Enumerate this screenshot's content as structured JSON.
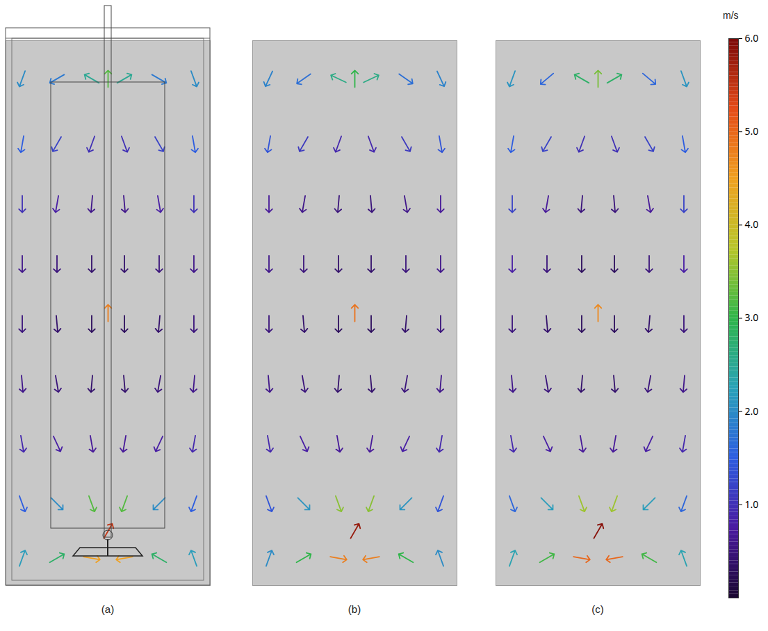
{
  "chart_data": {
    "type": "vector",
    "xlim": [
      0,
      1
    ],
    "ylim": [
      0,
      1
    ],
    "tick_labels": false,
    "colorbar": {
      "label": "m/s",
      "lim": [
        0,
        6
      ],
      "ticks": [
        1,
        2,
        3,
        4,
        5,
        6
      ]
    },
    "panels": [
      {
        "title": "(a)",
        "x": [
          0.08,
          0.25,
          0.42,
          0.58,
          0.75,
          0.92,
          0.08,
          0.25,
          0.42,
          0.58,
          0.75,
          0.92,
          0.08,
          0.25,
          0.42,
          0.58,
          0.75,
          0.92,
          0.08,
          0.25,
          0.42,
          0.58,
          0.75,
          0.92,
          0.08,
          0.25,
          0.42,
          0.58,
          0.75,
          0.92,
          0.08,
          0.25,
          0.42,
          0.58,
          0.75,
          0.92,
          0.08,
          0.25,
          0.42,
          0.58,
          0.75,
          0.92,
          0.08,
          0.25,
          0.42,
          0.58,
          0.75,
          0.92,
          0.08,
          0.25,
          0.42,
          0.58,
          0.75,
          0.92,
          0.5,
          0.5,
          0.5
        ],
        "y": [
          0.93,
          0.93,
          0.93,
          0.93,
          0.93,
          0.93,
          0.81,
          0.81,
          0.81,
          0.81,
          0.81,
          0.81,
          0.7,
          0.7,
          0.7,
          0.7,
          0.7,
          0.7,
          0.59,
          0.59,
          0.59,
          0.59,
          0.59,
          0.59,
          0.48,
          0.48,
          0.48,
          0.48,
          0.48,
          0.48,
          0.37,
          0.37,
          0.37,
          0.37,
          0.37,
          0.37,
          0.26,
          0.26,
          0.26,
          0.26,
          0.26,
          0.26,
          0.15,
          0.15,
          0.15,
          0.15,
          0.15,
          0.15,
          0.05,
          0.05,
          0.05,
          0.05,
          0.05,
          0.05,
          0.93,
          0.5,
          0.1
        ],
        "speed": [
          2.0,
          1.8,
          2.5,
          2.5,
          1.8,
          2.0,
          1.5,
          1.2,
          1.0,
          1.0,
          1.2,
          1.5,
          1.0,
          0.8,
          0.6,
          0.6,
          0.8,
          1.0,
          0.6,
          0.5,
          0.4,
          0.4,
          0.5,
          0.6,
          0.5,
          0.4,
          0.3,
          0.3,
          0.4,
          0.5,
          0.6,
          0.5,
          0.4,
          0.4,
          0.5,
          0.6,
          0.9,
          0.8,
          0.7,
          0.7,
          0.8,
          0.9,
          1.5,
          2.0,
          3.2,
          3.2,
          2.0,
          1.5,
          2.2,
          2.8,
          4.5,
          4.5,
          2.8,
          2.2,
          3.2,
          4.8,
          5.5
        ],
        "angle": [
          200,
          240,
          300,
          60,
          120,
          160,
          190,
          210,
          200,
          160,
          150,
          170,
          180,
          190,
          185,
          175,
          170,
          180,
          180,
          180,
          180,
          180,
          180,
          180,
          180,
          175,
          180,
          180,
          185,
          180,
          175,
          170,
          185,
          175,
          190,
          185,
          170,
          155,
          170,
          190,
          205,
          190,
          160,
          135,
          160,
          200,
          225,
          200,
          20,
          60,
          100,
          260,
          300,
          340,
          0,
          0,
          30
        ]
      },
      {
        "title": "(b)",
        "x": [
          0.08,
          0.25,
          0.42,
          0.58,
          0.75,
          0.92,
          0.08,
          0.25,
          0.42,
          0.58,
          0.75,
          0.92,
          0.08,
          0.25,
          0.42,
          0.58,
          0.75,
          0.92,
          0.08,
          0.25,
          0.42,
          0.58,
          0.75,
          0.92,
          0.08,
          0.25,
          0.42,
          0.58,
          0.75,
          0.92,
          0.08,
          0.25,
          0.42,
          0.58,
          0.75,
          0.92,
          0.08,
          0.25,
          0.42,
          0.58,
          0.75,
          0.92,
          0.08,
          0.25,
          0.42,
          0.58,
          0.75,
          0.92,
          0.08,
          0.25,
          0.42,
          0.58,
          0.75,
          0.92,
          0.5,
          0.5,
          0.5
        ],
        "y": [
          0.93,
          0.93,
          0.93,
          0.93,
          0.93,
          0.93,
          0.81,
          0.81,
          0.81,
          0.81,
          0.81,
          0.81,
          0.7,
          0.7,
          0.7,
          0.7,
          0.7,
          0.7,
          0.59,
          0.59,
          0.59,
          0.59,
          0.59,
          0.59,
          0.48,
          0.48,
          0.48,
          0.48,
          0.48,
          0.48,
          0.37,
          0.37,
          0.37,
          0.37,
          0.37,
          0.37,
          0.26,
          0.26,
          0.26,
          0.26,
          0.26,
          0.26,
          0.15,
          0.15,
          0.15,
          0.15,
          0.15,
          0.15,
          0.05,
          0.05,
          0.05,
          0.05,
          0.05,
          0.05,
          0.93,
          0.5,
          0.1
        ],
        "speed": [
          1.9,
          1.7,
          2.6,
          2.6,
          1.7,
          1.9,
          1.4,
          1.1,
          0.9,
          0.9,
          1.1,
          1.4,
          0.7,
          0.6,
          0.5,
          0.5,
          0.6,
          0.7,
          0.6,
          0.5,
          0.4,
          0.4,
          0.5,
          0.6,
          0.5,
          0.4,
          0.3,
          0.3,
          0.4,
          0.5,
          0.6,
          0.5,
          0.4,
          0.4,
          0.5,
          0.6,
          0.9,
          0.8,
          0.7,
          0.7,
          0.8,
          0.9,
          1.4,
          2.1,
          3.5,
          3.5,
          2.1,
          1.4,
          2.0,
          3.0,
          4.8,
          4.8,
          3.0,
          2.0,
          3.0,
          4.9,
          5.8
        ],
        "angle": [
          205,
          235,
          295,
          65,
          125,
          155,
          190,
          210,
          200,
          160,
          150,
          170,
          180,
          190,
          185,
          175,
          170,
          180,
          180,
          180,
          180,
          180,
          180,
          180,
          180,
          175,
          180,
          180,
          185,
          180,
          175,
          170,
          185,
          175,
          190,
          185,
          170,
          155,
          170,
          190,
          205,
          190,
          160,
          135,
          160,
          200,
          225,
          200,
          20,
          60,
          100,
          260,
          300,
          340,
          0,
          0,
          30
        ]
      },
      {
        "title": "(c)",
        "x": [
          0.08,
          0.25,
          0.42,
          0.58,
          0.75,
          0.92,
          0.08,
          0.25,
          0.42,
          0.58,
          0.75,
          0.92,
          0.08,
          0.25,
          0.42,
          0.58,
          0.75,
          0.92,
          0.08,
          0.25,
          0.42,
          0.58,
          0.75,
          0.92,
          0.08,
          0.25,
          0.42,
          0.58,
          0.75,
          0.92,
          0.08,
          0.25,
          0.42,
          0.58,
          0.75,
          0.92,
          0.08,
          0.25,
          0.42,
          0.58,
          0.75,
          0.92,
          0.08,
          0.25,
          0.42,
          0.58,
          0.75,
          0.92,
          0.08,
          0.25,
          0.42,
          0.58,
          0.75,
          0.92,
          0.5,
          0.5,
          0.5
        ],
        "y": [
          0.93,
          0.93,
          0.93,
          0.93,
          0.93,
          0.93,
          0.81,
          0.81,
          0.81,
          0.81,
          0.81,
          0.81,
          0.7,
          0.7,
          0.7,
          0.7,
          0.7,
          0.7,
          0.59,
          0.59,
          0.59,
          0.59,
          0.59,
          0.59,
          0.48,
          0.48,
          0.48,
          0.48,
          0.48,
          0.48,
          0.37,
          0.37,
          0.37,
          0.37,
          0.37,
          0.37,
          0.26,
          0.26,
          0.26,
          0.26,
          0.26,
          0.26,
          0.15,
          0.15,
          0.15,
          0.15,
          0.15,
          0.15,
          0.05,
          0.05,
          0.05,
          0.05,
          0.05,
          0.05,
          0.93,
          0.5,
          0.1
        ],
        "speed": [
          2.1,
          1.6,
          2.8,
          2.8,
          1.6,
          2.1,
          1.5,
          1.2,
          1.0,
          1.0,
          1.2,
          1.5,
          1.2,
          0.7,
          0.5,
          0.5,
          0.7,
          1.2,
          0.8,
          0.5,
          0.3,
          0.3,
          0.5,
          0.8,
          0.5,
          0.4,
          0.3,
          0.3,
          0.4,
          0.5,
          0.6,
          0.5,
          0.4,
          0.4,
          0.5,
          0.6,
          0.9,
          0.8,
          0.7,
          0.7,
          0.8,
          0.9,
          1.6,
          2.2,
          3.6,
          3.6,
          2.2,
          1.6,
          2.3,
          3.1,
          5.0,
          5.0,
          3.1,
          2.3,
          3.4,
          4.7,
          5.9
        ],
        "angle": [
          200,
          230,
          300,
          60,
          130,
          160,
          190,
          210,
          200,
          160,
          150,
          170,
          180,
          190,
          185,
          175,
          170,
          180,
          180,
          180,
          180,
          180,
          180,
          180,
          180,
          175,
          180,
          180,
          185,
          180,
          175,
          170,
          185,
          175,
          190,
          185,
          170,
          155,
          170,
          190,
          205,
          190,
          160,
          135,
          160,
          200,
          225,
          200,
          20,
          60,
          100,
          260,
          300,
          340,
          0,
          0,
          30
        ]
      }
    ]
  }
}
